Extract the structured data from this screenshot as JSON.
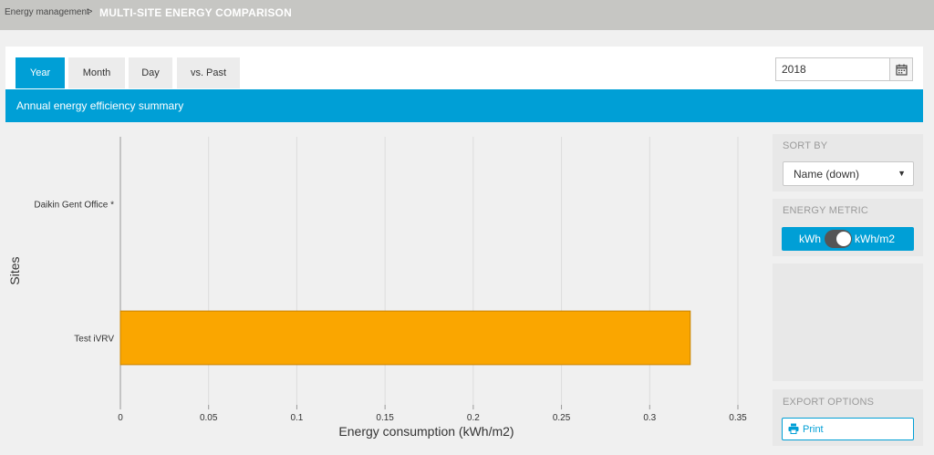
{
  "breadcrumb": {
    "parent": "Energy management",
    "separator": ">",
    "current": "MULTI-SITE ENERGY COMPARISON"
  },
  "tabs": [
    {
      "label": "Year",
      "active": true
    },
    {
      "label": "Month",
      "active": false
    },
    {
      "label": "Day",
      "active": false
    },
    {
      "label": "vs. Past",
      "active": false
    }
  ],
  "date_picker": {
    "value": "2018",
    "icon": "calendar-icon"
  },
  "banner": {
    "title": "Annual energy efficiency summary"
  },
  "sort_by": {
    "title": "SORT BY",
    "selected": "Name (down)"
  },
  "energy_metric": {
    "title": "ENERGY METRIC",
    "left_label": "kWh",
    "right_label": "kWh/m2",
    "selected": "kWh/m2"
  },
  "export_options": {
    "title": "EXPORT OPTIONS",
    "print_label": "Print",
    "icon": "printer-icon"
  },
  "colors": {
    "accent": "#009fd6",
    "bar": "#faa600",
    "bar_border": "#c78300",
    "topbar": "#c6c6c3"
  },
  "chart_data": {
    "type": "bar",
    "orientation": "horizontal",
    "categories": [
      "Daikin Gent Office *",
      "Test iVRV"
    ],
    "values": [
      0,
      0.323
    ],
    "xlabel": "Energy consumption (kWh/m2)",
    "ylabel": "Sites",
    "xlim": [
      0,
      0.35
    ],
    "xticks": [
      "0",
      "0.05",
      "0.1",
      "0.15",
      "0.2",
      "0.25",
      "0.3",
      "0.35"
    ],
    "grid": true,
    "legend": "none"
  }
}
